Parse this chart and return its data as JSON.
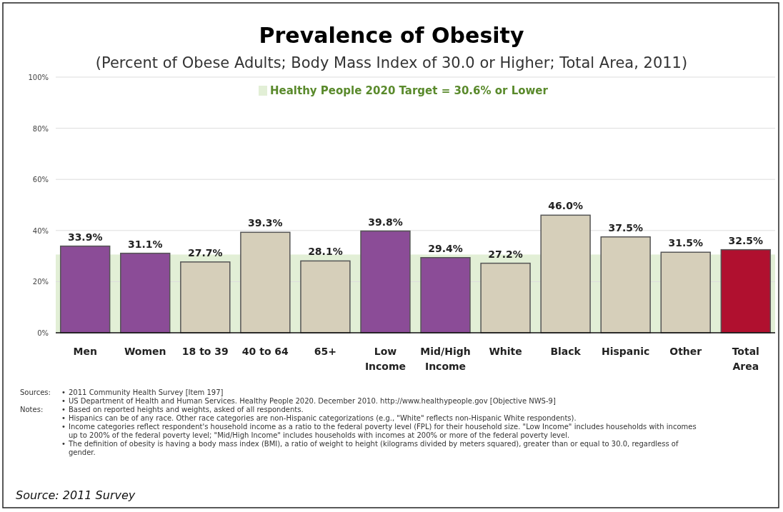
{
  "chart_data": {
    "type": "bar",
    "title": "Prevalence of Obesity",
    "subtitle": "(Percent of Obese Adults; Body Mass Index of 30.0 or Higher; Total Area, 2011)",
    "categories": [
      "Men",
      "Women",
      "18 to 39",
      "40 to 64",
      "65+",
      "Low Income",
      "Mid/High Income",
      "White",
      "Black",
      "Hispanic",
      "Other",
      "Total Area"
    ],
    "values": [
      33.9,
      31.1,
      27.7,
      39.3,
      28.1,
      39.8,
      29.4,
      27.2,
      46.0,
      37.5,
      31.5,
      32.5
    ],
    "value_labels": [
      "33.9%",
      "31.1%",
      "27.7%",
      "39.3%",
      "28.1%",
      "39.8%",
      "29.4%",
      "27.2%",
      "46.0%",
      "37.5%",
      "31.5%",
      "32.5%"
    ],
    "colors": [
      "#8b4c97",
      "#8b4c97",
      "#d6cfba",
      "#d6cfba",
      "#d6cfba",
      "#8b4c97",
      "#8b4c97",
      "#d6cfba",
      "#d6cfba",
      "#d6cfba",
      "#d6cfba",
      "#b0102f"
    ],
    "ylim": [
      0,
      100
    ],
    "yticks": [
      {
        "value": 0,
        "label": "0%"
      },
      {
        "value": 20,
        "label": "20%"
      },
      {
        "value": 40,
        "label": "40%"
      },
      {
        "value": 60,
        "label": "60%"
      },
      {
        "value": 80,
        "label": "80%"
      },
      {
        "value": 100,
        "label": "100%"
      }
    ],
    "grid": "y",
    "bands": [
      {
        "axis": "y",
        "from": 0,
        "to": 30.6,
        "label": "Healthy People 2020 Target = 30.6% or Lower",
        "color": "#e2efd6"
      }
    ],
    "annotations": [
      "Sources:",
      "• 2011 Community Health Survey [Item 197]",
      "• US Department of Health and Human Services.  Healthy People 2020.  December 2010.  http://www.healthypeople.gov  [Objective NWS-9]",
      "Notes:",
      "• Based on reported heights and weights, asked of all respondents.",
      "• Hispanics can be of any race.  Other race categories are non-Hispanic categorizations (e.g., \"White\" reflects non-Hispanic White respondents).",
      "• Income categories reflect respondent's household income as a ratio to the federal poverty level (FPL) for their household size.  \"Low Income\" includes households with incomes up to 200% of the federal poverty level; \"Mid/High Income\" includes households with incomes at 200% or more of the federal poverty level.",
      "• The definition of obesity is having a body mass index (BMI), a ratio of weight to height (kilograms divided by meters squared), greater than or equal to 30.0, regardless of gender.",
      "Source:  2011 Survey"
    ]
  }
}
